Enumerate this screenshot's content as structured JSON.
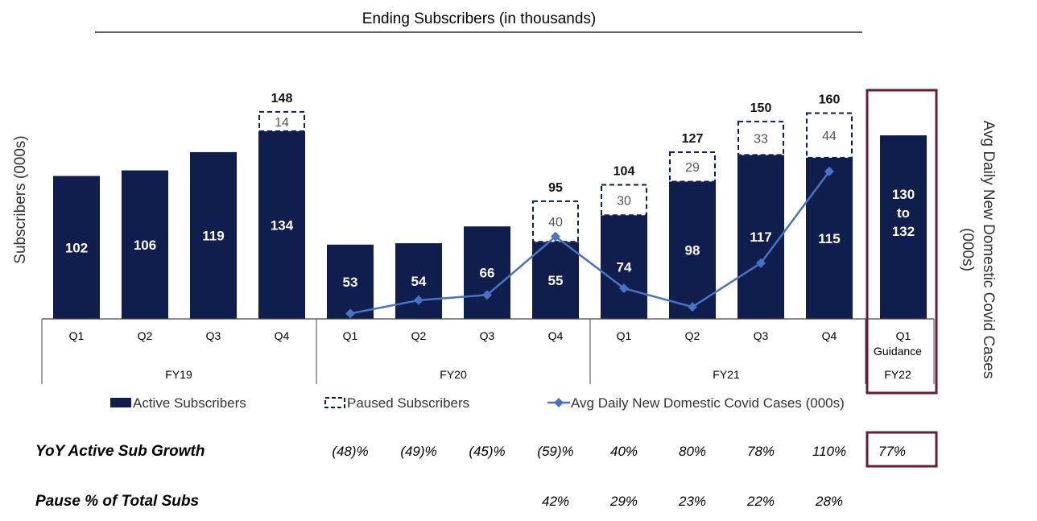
{
  "chart_data": {
    "type": "bar",
    "title": "Ending Subscribers (in thousands)",
    "ylabel": "Subscribers (000s)",
    "y2label_line1": "Avg Daily New Domestic Covid Cases",
    "y2label_line2": "(000s)",
    "ylim": [
      0,
      170
    ],
    "categories": [
      "Q1",
      "Q2",
      "Q3",
      "Q4",
      "Q1",
      "Q2",
      "Q3",
      "Q4",
      "Q1",
      "Q2",
      "Q3",
      "Q4",
      "Q1"
    ],
    "category_sublabels": [
      "",
      "",
      "",
      "",
      "",
      "",
      "",
      "",
      "",
      "",
      "",
      "",
      "Guidance"
    ],
    "groups": [
      {
        "label": "FY19",
        "start": 0,
        "end": 3
      },
      {
        "label": "FY20",
        "start": 4,
        "end": 7
      },
      {
        "label": "FY21",
        "start": 8,
        "end": 11
      },
      {
        "label": "FY22",
        "start": 12,
        "end": 12
      }
    ],
    "series": [
      {
        "name": "Active Subscribers",
        "color": "#0f1e4d",
        "values": [
          102,
          106,
          119,
          134,
          53,
          54,
          66,
          55,
          74,
          98,
          117,
          115,
          131
        ],
        "labels": [
          "102",
          "106",
          "119",
          "134",
          "53",
          "54",
          "66",
          "55",
          "74",
          "98",
          "117",
          "115",
          "130\nto\n132"
        ]
      },
      {
        "name": "Paused Subscribers",
        "color": "#0f1e4d",
        "values": [
          null,
          null,
          null,
          14,
          null,
          null,
          null,
          40,
          30,
          29,
          33,
          44,
          null
        ],
        "labels": [
          "",
          "",
          "",
          "14",
          "",
          "",
          "",
          "40",
          "30",
          "29",
          "33",
          "44",
          ""
        ]
      },
      {
        "name": "Avg Daily New Domestic Covid Cases (000s)",
        "color": "#4a72c4",
        "values": [
          null,
          null,
          null,
          null,
          4,
          14,
          18,
          62,
          23,
          9,
          42,
          111,
          null
        ]
      }
    ],
    "totals": [
      "",
      "",
      "",
      "148",
      "",
      "",
      "",
      "95",
      "104",
      "127",
      "150",
      "160",
      ""
    ],
    "y2lim": [
      0,
      230
    ],
    "highlight_color": "#6b1a3a"
  },
  "table": {
    "rows": [
      {
        "title": "YoY Active Sub Growth",
        "values": [
          "",
          "",
          "",
          "",
          "(48)%",
          "(49)%",
          "(45)%",
          "(59)%",
          "40%",
          "80%",
          "78%",
          "110%",
          "77%"
        ]
      },
      {
        "title": "Pause % of Total Subs",
        "values": [
          "",
          "",
          "",
          "",
          "",
          "",
          "",
          "42%",
          "29%",
          "23%",
          "22%",
          "28%",
          ""
        ]
      }
    ]
  }
}
